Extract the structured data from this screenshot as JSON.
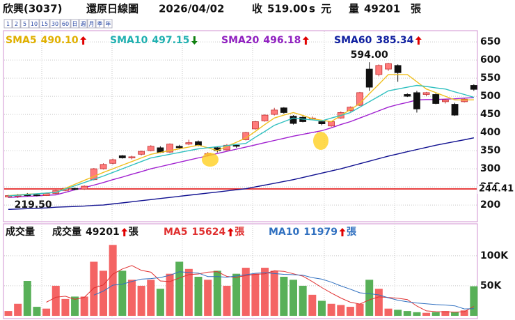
{
  "header": {
    "name": "欣興(3037)",
    "mode": "還原日線圖",
    "date": "2026/04/02",
    "close_label": "收",
    "close": "519.00",
    "flag": "s",
    "unit": "元",
    "volume_label": "量",
    "volume": "49201",
    "volume_unit": "張"
  },
  "toolbar": [
    "1",
    "2",
    "5",
    "10",
    "15",
    "30",
    "60",
    "日",
    "週",
    "月",
    "季",
    "年"
  ],
  "chart_data": [
    {
      "type": "candlestick",
      "open": [
        222,
        224,
        229,
        228,
        226,
        232,
        240,
        246,
        244,
        270,
        300,
        315,
        336,
        330,
        340,
        350,
        358,
        346,
        362,
        368,
        375,
        338,
        358,
        352,
        365,
        380,
        410,
        432,
        450,
        468,
        445,
        442,
        438,
        430,
        418,
        440,
        460,
        475,
        575,
        560,
        575,
        585,
        505,
        510,
        505,
        505,
        485,
        478,
        485,
        530
      ],
      "high": [
        228,
        231,
        233,
        230,
        234,
        242,
        248,
        248,
        254,
        302,
        315,
        328,
        338,
        336,
        350,
        365,
        362,
        370,
        366,
        380,
        378,
        346,
        360,
        368,
        368,
        402,
        432,
        450,
        468,
        470,
        448,
        446,
        444,
        432,
        432,
        458,
        472,
        512,
        594,
        588,
        592,
        588,
        508,
        515,
        512,
        508,
        492,
        482,
        494,
        533
      ],
      "low": [
        220,
        219.5,
        224,
        224,
        225,
        230,
        238,
        241,
        242,
        268,
        298,
        312,
        328,
        326,
        337,
        348,
        343,
        344,
        355,
        365,
        362,
        334,
        345,
        350,
        358,
        378,
        408,
        430,
        447,
        452,
        422,
        428,
        434,
        420,
        416,
        438,
        458,
        473,
        515,
        555,
        570,
        540,
        498,
        455,
        500,
        478,
        480,
        446,
        483,
        515
      ],
      "close": [
        226,
        227,
        226,
        226,
        232,
        240,
        246,
        243,
        252,
        300,
        312,
        325,
        330,
        333,
        348,
        362,
        345,
        368,
        358,
        372,
        365,
        342,
        350,
        365,
        362,
        400,
        430,
        448,
        462,
        455,
        425,
        430,
        440,
        424,
        430,
        455,
        470,
        510,
        525,
        585,
        590,
        565,
        500,
        465,
        510,
        480,
        490,
        448,
        492,
        519
      ],
      "up_color": "#ff7b7b",
      "up_edge": "#c03030",
      "down_color": "#111111",
      "down_edge": "#111111",
      "series": [
        {
          "name": "SMA5",
          "last_label": "490.10",
          "trend": "up",
          "color": "#f0c020",
          "text_color": "#e0b000",
          "values": [
            226,
            228,
            230,
            231,
            233,
            235,
            246,
            257,
            268,
            279,
            290,
            300,
            310,
            320,
            330,
            340,
            345,
            350,
            355,
            360,
            365,
            358,
            350,
            362,
            373,
            385,
            403,
            422,
            440,
            448,
            455,
            447,
            438,
            434,
            430,
            447,
            463,
            480,
            507,
            533,
            560,
            560,
            560,
            540,
            520,
            510,
            500,
            490,
            490,
            490.1
          ]
        },
        {
          "name": "SMA10",
          "last_label": "497.15",
          "trend": "down",
          "color": "#30c0c0",
          "text_color": "#20b0b0",
          "values": [
            225,
            227,
            229,
            231,
            233,
            235,
            244,
            253,
            262,
            271,
            280,
            290,
            300,
            310,
            320,
            330,
            335,
            340,
            345,
            350,
            355,
            358,
            361,
            364,
            367,
            370,
            387,
            403,
            420,
            430,
            440,
            437,
            435,
            432,
            440,
            447,
            455,
            470,
            485,
            500,
            515,
            520,
            525,
            530,
            527,
            523,
            520,
            512,
            505,
            497.15
          ]
        },
        {
          "name": "SMA20",
          "last_label": "496.18",
          "trend": "up",
          "color": "#a020d0",
          "text_color": "#9020c0",
          "values": [
            221,
            222,
            224,
            225,
            227,
            228,
            235,
            242,
            248,
            255,
            262,
            270,
            277,
            285,
            292,
            300,
            306,
            312,
            318,
            324,
            330,
            336,
            342,
            348,
            354,
            360,
            366,
            372,
            378,
            384,
            390,
            395,
            400,
            405,
            413,
            422,
            430,
            440,
            450,
            460,
            470,
            477,
            483,
            490,
            491,
            491,
            492,
            493,
            495,
            496.18
          ]
        },
        {
          "name": "SMA60",
          "last_label": "385.34",
          "trend": "up",
          "color": "#101090",
          "text_color": "#1020a0",
          "values": [
            188,
            189,
            190,
            191,
            192,
            194,
            195,
            196,
            197,
            199,
            200,
            203,
            206,
            209,
            212,
            215,
            218,
            221,
            224,
            227,
            230,
            233,
            236,
            239,
            242,
            245,
            250,
            255,
            260,
            265,
            270,
            276,
            282,
            288,
            294,
            300,
            307,
            314,
            321,
            328,
            335,
            341,
            347,
            353,
            359,
            365,
            370,
            375,
            380,
            385.34
          ]
        }
      ],
      "annotations": [
        {
          "label": "594.00",
          "value": 594
        },
        {
          "label": "219.50",
          "value": 219.5
        }
      ],
      "ref_line": {
        "value": 244.41,
        "label": "244.41",
        "color": "#e00000"
      },
      "ylim": [
        154,
        679
      ],
      "yticks": [
        200,
        250,
        300,
        350,
        400,
        450,
        500,
        550,
        600,
        650
      ],
      "grid": true
    },
    {
      "type": "bar",
      "title": "成交量",
      "name": "成交量",
      "last_label": "49201",
      "trend": "up",
      "unit": "張",
      "values": [
        8000,
        20000,
        58000,
        15000,
        12000,
        50000,
        28000,
        32000,
        32000,
        90000,
        75000,
        118000,
        75000,
        60000,
        50000,
        60000,
        45000,
        70000,
        90000,
        78000,
        65000,
        60000,
        75000,
        50000,
        70000,
        80000,
        70000,
        80000,
        75000,
        65000,
        60000,
        50000,
        35000,
        25000,
        20000,
        18000,
        15000,
        20000,
        60000,
        45000,
        12000,
        10000,
        8000,
        6000,
        5000,
        6000,
        8000,
        6000,
        9000,
        49201
      ],
      "up_color": "#f46464",
      "down_color": "#58b058",
      "series": [
        {
          "name": "MA5",
          "last_label": "15624",
          "trend": "up",
          "unit": "張",
          "color": "#e03030",
          "values": [
            null,
            null,
            null,
            null,
            22600,
            31000,
            32600,
            27400,
            30800,
            46400,
            51400,
            69400,
            78000,
            83600,
            75600,
            72600,
            58000,
            57000,
            63000,
            68600,
            69600,
            72600,
            73600,
            65600,
            64000,
            67000,
            69000,
            70000,
            75000,
            74000,
            70000,
            66000,
            57000,
            47000,
            38000,
            29600,
            22600,
            19600,
            26600,
            31600,
            30400,
            29400,
            27000,
            16200,
            8200,
            7000,
            6600,
            6200,
            6800,
            15624
          ]
        },
        {
          "name": "MA10",
          "last_label": "11979",
          "trend": "up",
          "unit": "張",
          "color": "#3070c0",
          "values": [
            null,
            null,
            null,
            null,
            null,
            null,
            null,
            null,
            null,
            34500,
            41200,
            51000,
            52700,
            57200,
            61000,
            62000,
            63700,
            67500,
            73300,
            72100,
            71100,
            65300,
            65300,
            64300,
            66300,
            68300,
            70800,
            71800,
            70300,
            69000,
            68500,
            67500,
            63500,
            61000,
            56000,
            49800,
            44300,
            38300,
            36800,
            34800,
            30000,
            26000,
            23300,
            21400,
            19900,
            18700,
            18000,
            16600,
            11500,
            11979
          ]
        }
      ],
      "ylim": [
        0,
        152000
      ],
      "yticks": [
        {
          "value": 50000,
          "label": "50K"
        },
        {
          "value": 100000,
          "label": "100K"
        }
      ],
      "grid": true
    }
  ]
}
